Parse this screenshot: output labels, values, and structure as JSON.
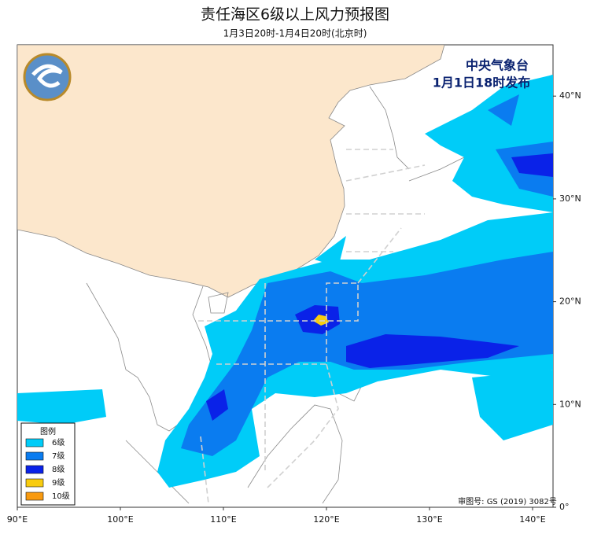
{
  "header": {
    "title": "责任海区6级以上风力预报图",
    "subtitle": "1月3日20时-1月4日20时(北京时)"
  },
  "publisher": {
    "name": "中央气象台",
    "issued": "1月1日18时发布"
  },
  "legend": {
    "title": "图例",
    "items": [
      {
        "label": "6级",
        "color": "#00ccf8"
      },
      {
        "label": "7级",
        "color": "#0a7cf0"
      },
      {
        "label": "8级",
        "color": "#0a22e8"
      },
      {
        "label": "9级",
        "color": "#f8cc10"
      },
      {
        "label": "10级",
        "color": "#f89a10"
      }
    ]
  },
  "map": {
    "lon_ticks": [
      {
        "value": 90,
        "label": "90°E"
      },
      {
        "value": 100,
        "label": "100°E"
      },
      {
        "value": 110,
        "label": "110°E"
      },
      {
        "value": 120,
        "label": "120°E"
      },
      {
        "value": 130,
        "label": "130°E"
      },
      {
        "value": 140,
        "label": "140°E"
      }
    ],
    "lat_ticks": [
      {
        "value": 0,
        "label": "0°"
      },
      {
        "value": 10,
        "label": "10°N"
      },
      {
        "value": 20,
        "label": "20°N"
      },
      {
        "value": 30,
        "label": "30°N"
      },
      {
        "value": 40,
        "label": "40°N"
      }
    ],
    "approval": "审图号: GS (2019) 3082号"
  }
}
